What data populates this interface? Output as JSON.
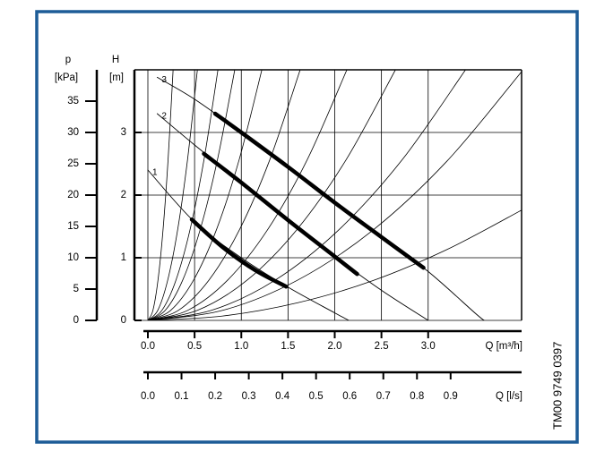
{
  "chart_data": {
    "type": "line",
    "y2label_top": "p",
    "y2label_unit": "[kPa]",
    "ylabel_top": "H",
    "ylabel_unit": "[m]",
    "xlabel": "Q [m³/h]",
    "x2label": "Q [l/s]",
    "side_text": "TM00 9749 0397",
    "xlim": [
      0,
      4.0
    ],
    "xticks": [
      {
        "value": 0,
        "label": "0.0"
      },
      0.5,
      {
        "value": 1,
        "label": "1.0"
      },
      1.5,
      {
        "value": 2,
        "label": "2.0"
      },
      2.5,
      {
        "value": 3,
        "label": "3.0"
      }
    ],
    "x2lim": [
      0,
      1.111
    ],
    "x2ticks": [
      {
        "value": 0,
        "label": "0.0"
      },
      0.1,
      0.2,
      0.3,
      0.4,
      0.5,
      0.6,
      0.7,
      0.8,
      0.9
    ],
    "ylim": [
      0,
      4
    ],
    "yticks": [
      0,
      1,
      2,
      3
    ],
    "y2lim": [
      0,
      40
    ],
    "y2ticks": [
      0,
      5,
      10,
      15,
      20,
      25,
      30,
      35
    ],
    "grid": true,
    "line_color": "#000000",
    "series": [
      {
        "name": "3",
        "x": [
          0.1,
          0.5,
          1.0,
          1.5,
          2.0,
          2.5,
          3.0,
          3.5,
          3.6
        ],
        "values": [
          3.88,
          3.53,
          3.0,
          2.45,
          1.88,
          1.33,
          0.78,
          0.12,
          0
        ],
        "width": 0.9
      },
      {
        "name": "2",
        "x": [
          0.1,
          0.5,
          1.0,
          1.5,
          2.0,
          2.5,
          3.0
        ],
        "values": [
          3.3,
          2.8,
          2.2,
          1.6,
          1.02,
          0.48,
          0
        ],
        "width": 0.9
      },
      {
        "name": "1",
        "x": [
          0.0,
          0.5,
          1.0,
          1.5,
          2.0,
          2.15
        ],
        "values": [
          2.4,
          1.57,
          1.0,
          0.53,
          0.12,
          0
        ],
        "width": 0.9
      },
      {
        "x": [
          0.72,
          1.0,
          1.5,
          2.0,
          2.5,
          2.95
        ],
        "values": [
          3.3,
          3.0,
          2.45,
          1.88,
          1.33,
          0.84
        ],
        "width": 4.5
      },
      {
        "x": [
          0.6,
          1.0,
          1.5,
          2.0,
          2.24
        ],
        "values": [
          2.66,
          2.2,
          1.6,
          1.02,
          0.74
        ],
        "width": 4.5
      },
      {
        "x": [
          0.47,
          0.8,
          1.15,
          1.48
        ],
        "values": [
          1.61,
          1.17,
          0.8,
          0.54
        ],
        "width": 4.5
      },
      {
        "x": [
          0,
          0.054,
          0.108,
          0.162,
          0.216,
          0.27
        ],
        "values": [
          0,
          0.16,
          0.64,
          1.44,
          2.56,
          4
        ],
        "width": 0.8
      },
      {
        "x": [
          0,
          0.106,
          0.212,
          0.318,
          0.424,
          0.53
        ],
        "values": [
          0,
          0.16,
          0.64,
          1.44,
          2.56,
          4
        ],
        "width": 0.8
      },
      {
        "x": [
          0,
          0.15,
          0.3,
          0.45,
          0.6,
          0.75
        ],
        "values": [
          0,
          0.16,
          0.64,
          1.44,
          2.56,
          4
        ],
        "width": 0.8
      },
      {
        "x": [
          0,
          0.186,
          0.372,
          0.558,
          0.744,
          0.93
        ],
        "values": [
          0,
          0.16,
          0.64,
          1.44,
          2.56,
          4
        ],
        "width": 0.8
      },
      {
        "x": [
          0,
          0.244,
          0.488,
          0.732,
          0.976,
          1.22
        ],
        "values": [
          0,
          0.16,
          0.64,
          1.44,
          2.56,
          4
        ],
        "width": 0.8
      },
      {
        "x": [
          0,
          0.326,
          0.652,
          0.978,
          1.304,
          1.63
        ],
        "values": [
          0,
          0.16,
          0.64,
          1.44,
          2.56,
          4
        ],
        "width": 0.8
      },
      {
        "x": [
          0,
          0.426,
          0.852,
          1.278,
          1.704,
          2.13
        ],
        "values": [
          0,
          0.16,
          0.64,
          1.44,
          2.56,
          4
        ],
        "width": 0.8
      },
      {
        "x": [
          0,
          0.53,
          1.06,
          1.59,
          2.12,
          2.65
        ],
        "values": [
          0,
          0.16,
          0.64,
          1.44,
          2.56,
          4
        ],
        "width": 0.8
      },
      {
        "x": [
          0,
          0.68,
          1.36,
          2.04,
          2.72,
          3.4
        ],
        "values": [
          0,
          0.16,
          0.64,
          1.44,
          2.56,
          4
        ],
        "width": 0.8
      },
      {
        "x": [
          0,
          0.8,
          1.6,
          2.4,
          3.2,
          4.0
        ],
        "values": [
          0,
          0.16,
          0.64,
          1.43,
          2.54,
          3.97
        ],
        "width": 0.8
      },
      {
        "x": [
          0,
          0.8,
          1.6,
          2.4,
          3.2,
          4.0
        ],
        "values": [
          0,
          0.07,
          0.28,
          0.63,
          1.13,
          1.76
        ],
        "width": 0.8
      }
    ]
  }
}
